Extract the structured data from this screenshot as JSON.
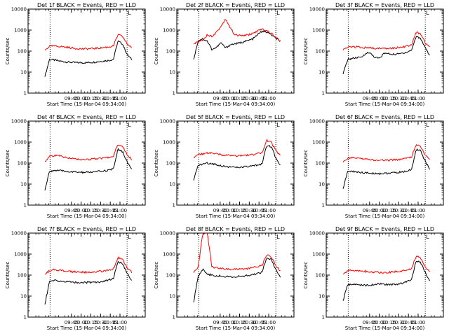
{
  "colors": {
    "events": "#000000",
    "lld": "#ff0000",
    "axis": "#000000",
    "marker": "#000000"
  },
  "chart_data": [
    {
      "type": "line",
      "title": "Det 1f BLACK = Events, RED = LLD",
      "xlabel": "Start Time (15-Mar-04 09:34:00)",
      "ylabel": "Counts/sec",
      "y_scale": "log",
      "ylim": [
        1,
        10000
      ],
      "y_ticks": [
        "1",
        "10",
        "100",
        "1000",
        "10000"
      ],
      "x_ticks": [
        "09:45",
        "10:00",
        "10:15",
        "10:30",
        "10:45",
        "11:00"
      ],
      "x_domain_minutes": [
        -56,
        125
      ],
      "vlines_minutes": [
        -22,
        97
      ],
      "x_start_minutes": -30,
      "x_end_minutes": 104,
      "top_tick_label": "L",
      "series": [
        {
          "name": "Events",
          "color": "#000000",
          "values": [
            6,
            40,
            38,
            34,
            32,
            30,
            29,
            28,
            28,
            28,
            29,
            30,
            32,
            34,
            36,
            40,
            300,
            220,
            70,
            40
          ]
        },
        {
          "name": "LLD",
          "color": "#ff0000",
          "values": [
            110,
            170,
            175,
            170,
            160,
            150,
            140,
            132,
            128,
            128,
            130,
            135,
            140,
            148,
            158,
            175,
            600,
            500,
            220,
            150
          ]
        }
      ]
    },
    {
      "type": "line",
      "title": "Det 2f BLACK = Events, RED = LLD",
      "xlabel": "Start Time (15-Mar-04 09:34:00)",
      "ylabel": "Counts/sec",
      "y_scale": "log",
      "ylim": [
        1,
        10000
      ],
      "y_ticks": [
        "1",
        "10",
        "100",
        "1000",
        "10000"
      ],
      "x_ticks": [
        "09:45",
        "10:00",
        "10:15",
        "10:30",
        "10:45",
        "11:00"
      ],
      "x_domain_minutes": [
        -56,
        125
      ],
      "vlines_minutes": [
        -22,
        97
      ],
      "x_start_minutes": -30,
      "x_end_minutes": 104,
      "top_tick_label": "L",
      "series": [
        {
          "name": "Events",
          "color": "#000000",
          "values": [
            40,
            320,
            380,
            300,
            120,
            150,
            250,
            140,
            200,
            220,
            240,
            280,
            320,
            380,
            600,
            900,
            800,
            600,
            400,
            300
          ]
        },
        {
          "name": "LLD",
          "color": "#ff0000",
          "values": [
            220,
            280,
            350,
            600,
            500,
            800,
            1500,
            3500,
            1300,
            600,
            550,
            560,
            600,
            700,
            900,
            1100,
            950,
            700,
            450,
            300
          ]
        }
      ]
    },
    {
      "type": "line",
      "title": "Det 3f BLACK = Events, RED = LLD",
      "xlabel": "Start Time (15-Mar-04 09:34:00)",
      "ylabel": "Counts/sec",
      "y_scale": "log",
      "ylim": [
        1,
        10000
      ],
      "y_ticks": [
        "1",
        "10",
        "100",
        "1000",
        "10000"
      ],
      "x_ticks": [
        "09:45",
        "10:00",
        "10:15",
        "10:30",
        "10:45",
        "11:00"
      ],
      "x_domain_minutes": [
        -56,
        125
      ],
      "vlines_minutes": [
        -22,
        97
      ],
      "x_start_minutes": -30,
      "x_end_minutes": 104,
      "top_tick_label": "L",
      "series": [
        {
          "name": "Events",
          "color": "#000000",
          "values": [
            8,
            40,
            45,
            48,
            50,
            80,
            80,
            50,
            45,
            80,
            75,
            70,
            72,
            80,
            90,
            110,
            500,
            400,
            150,
            60
          ]
        },
        {
          "name": "LLD",
          "color": "#ff0000",
          "values": [
            110,
            150,
            160,
            160,
            150,
            145,
            140,
            135,
            135,
            135,
            138,
            140,
            145,
            155,
            170,
            200,
            800,
            650,
            250,
            150
          ]
        }
      ]
    },
    {
      "type": "line",
      "title": "Det 4f BLACK = Events, RED = LLD",
      "xlabel": "Start Time (15-Mar-04 09:34:00)",
      "ylabel": "Counts/sec",
      "y_scale": "log",
      "ylim": [
        1,
        10000
      ],
      "y_ticks": [
        "1",
        "10",
        "100",
        "1000",
        "10000"
      ],
      "x_ticks": [
        "09:45",
        "10:00",
        "10:15",
        "10:30",
        "10:45",
        "11:00"
      ],
      "x_domain_minutes": [
        -56,
        125
      ],
      "vlines_minutes": [
        -22,
        97
      ],
      "x_start_minutes": -30,
      "x_end_minutes": 104,
      "top_tick_label": "L",
      "series": [
        {
          "name": "Events",
          "color": "#000000",
          "values": [
            5,
            40,
            45,
            44,
            42,
            40,
            38,
            37,
            36,
            36,
            37,
            38,
            40,
            43,
            46,
            52,
            450,
            350,
            120,
            50
          ]
        },
        {
          "name": "LLD",
          "color": "#ff0000",
          "values": [
            120,
            200,
            230,
            220,
            200,
            180,
            165,
            155,
            150,
            150,
            152,
            158,
            165,
            175,
            190,
            220,
            800,
            650,
            250,
            150
          ]
        }
      ]
    },
    {
      "type": "line",
      "title": "Det 5f BLACK = Events, RED = LLD",
      "xlabel": "Start Time (15-Mar-04 09:34:00)",
      "ylabel": "Counts/sec",
      "y_scale": "log",
      "ylim": [
        1,
        10000
      ],
      "y_ticks": [
        "1",
        "10",
        "100",
        "1000",
        "10000"
      ],
      "x_ticks": [
        "09:45",
        "10:00",
        "10:15",
        "10:30",
        "10:45",
        "11:00"
      ],
      "x_domain_minutes": [
        -56,
        125
      ],
      "vlines_minutes": [
        -22,
        97
      ],
      "x_start_minutes": -30,
      "x_end_minutes": 104,
      "top_tick_label": "L",
      "series": [
        {
          "name": "Events",
          "color": "#000000",
          "values": [
            15,
            80,
            90,
            100,
            95,
            85,
            75,
            70,
            65,
            62,
            62,
            65,
            68,
            72,
            80,
            95,
            700,
            600,
            180,
            80
          ]
        },
        {
          "name": "LLD",
          "color": "#ff0000",
          "values": [
            180,
            250,
            280,
            300,
            290,
            270,
            250,
            235,
            225,
            220,
            222,
            230,
            240,
            255,
            280,
            320,
            1200,
            1000,
            400,
            220
          ]
        }
      ]
    },
    {
      "type": "line",
      "title": "Det 6f BLACK = Events, RED = LLD",
      "xlabel": "Start Time (15-Mar-04 09:34:00)",
      "ylabel": "Counts/sec",
      "y_scale": "log",
      "ylim": [
        1,
        10000
      ],
      "y_ticks": [
        "1",
        "10",
        "100",
        "1000",
        "10000"
      ],
      "x_ticks": [
        "09:45",
        "10:00",
        "10:15",
        "10:30",
        "10:45",
        "11:00"
      ],
      "x_domain_minutes": [
        -56,
        125
      ],
      "vlines_minutes": [
        -22,
        97
      ],
      "x_start_minutes": -30,
      "x_end_minutes": 104,
      "top_tick_label": "L",
      "series": [
        {
          "name": "Events",
          "color": "#000000",
          "values": [
            6,
            40,
            40,
            38,
            36,
            34,
            33,
            32,
            32,
            32,
            33,
            34,
            36,
            38,
            42,
            48,
            450,
            380,
            120,
            50
          ]
        },
        {
          "name": "LLD",
          "color": "#ff0000",
          "values": [
            110,
            170,
            180,
            175,
            165,
            155,
            145,
            138,
            135,
            135,
            137,
            142,
            148,
            158,
            172,
            200,
            750,
            600,
            230,
            140
          ]
        }
      ]
    },
    {
      "type": "line",
      "title": "Det 7f BLACK = Events, RED = LLD",
      "xlabel": "Start Time (15-Mar-04 09:34:00)",
      "ylabel": "Counts/sec",
      "y_scale": "log",
      "ylim": [
        1,
        10000
      ],
      "y_ticks": [
        "1",
        "10",
        "100",
        "1000",
        "10000"
      ],
      "x_ticks": [
        "09:45",
        "10:00",
        "10:15",
        "10:30",
        "10:45",
        "11:00"
      ],
      "x_domain_minutes": [
        -56,
        125
      ],
      "vlines_minutes": [
        -22,
        97
      ],
      "x_start_minutes": -30,
      "x_end_minutes": 104,
      "top_tick_label": "L",
      "series": [
        {
          "name": "Events",
          "color": "#000000",
          "values": [
            4,
            50,
            55,
            52,
            50,
            48,
            46,
            45,
            44,
            44,
            45,
            46,
            48,
            52,
            58,
            70,
            420,
            350,
            120,
            55
          ]
        },
        {
          "name": "LLD",
          "color": "#ff0000",
          "values": [
            110,
            160,
            180,
            175,
            165,
            155,
            145,
            140,
            138,
            138,
            140,
            145,
            150,
            160,
            175,
            200,
            650,
            550,
            220,
            140
          ]
        }
      ]
    },
    {
      "type": "line",
      "title": "Det 8f BLACK = Events, RED = LLD",
      "xlabel": "Start Time (15-Mar-04 09:34:00)",
      "ylabel": "Counts/sec",
      "y_scale": "log",
      "ylim": [
        1,
        10000
      ],
      "y_ticks": [
        "1",
        "10",
        "100",
        "1000",
        "10000"
      ],
      "x_ticks": [
        "09:45",
        "10:00",
        "10:15",
        "10:30",
        "10:45",
        "11:00"
      ],
      "x_domain_minutes": [
        -56,
        125
      ],
      "vlines_minutes": [
        -22,
        97
      ],
      "x_start_minutes": -30,
      "x_end_minutes": 104,
      "top_tick_label": "L",
      "series": [
        {
          "name": "Events",
          "color": "#000000",
          "values": [
            5,
            90,
            200,
            110,
            100,
            95,
            90,
            86,
            84,
            84,
            86,
            90,
            95,
            105,
            120,
            140,
            700,
            550,
            180,
            80
          ]
        },
        {
          "name": "LLD",
          "color": "#ff0000",
          "values": [
            130,
            230,
            10000,
            10000,
            240,
            220,
            205,
            195,
            190,
            190,
            193,
            200,
            210,
            225,
            250,
            290,
            900,
            750,
            280,
            160
          ]
        }
      ]
    },
    {
      "type": "line",
      "title": "Det 9f BLACK = Events, RED = LLD",
      "xlabel": "Start Time (15-Mar-04 09:34:00)",
      "ylabel": "Counts/sec",
      "y_scale": "log",
      "ylim": [
        1,
        10000
      ],
      "y_ticks": [
        "1",
        "10",
        "100",
        "1000",
        "10000"
      ],
      "x_ticks": [
        "09:45",
        "10:00",
        "10:15",
        "10:30",
        "10:45",
        "11:00"
      ],
      "x_domain_minutes": [
        -56,
        125
      ],
      "vlines_minutes": [
        -22,
        97
      ],
      "x_start_minutes": -30,
      "x_end_minutes": 104,
      "top_tick_label": "L",
      "series": [
        {
          "name": "Events",
          "color": "#000000",
          "values": [
            6,
            35,
            36,
            35,
            34,
            33,
            33,
            34,
            40,
            35,
            35,
            36,
            38,
            42,
            48,
            60,
            480,
            400,
            130,
            55
          ]
        },
        {
          "name": "LLD",
          "color": "#ff0000",
          "values": [
            110,
            160,
            175,
            170,
            160,
            150,
            142,
            138,
            136,
            136,
            138,
            142,
            148,
            158,
            172,
            200,
            800,
            650,
            240,
            150
          ]
        }
      ]
    }
  ]
}
